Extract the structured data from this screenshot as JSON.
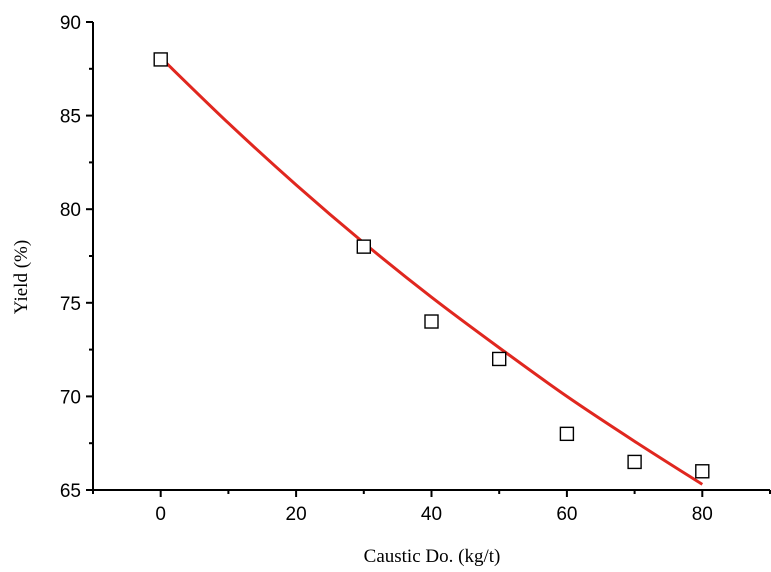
{
  "chart_data": {
    "type": "scatter",
    "title": "",
    "xlabel": "Caustic Do. (kg/t)",
    "ylabel": "Yield (%)",
    "xlim": [
      -10,
      90
    ],
    "ylim": [
      65,
      90
    ],
    "xticks": [
      0,
      20,
      40,
      60,
      80
    ],
    "yticks": [
      65,
      70,
      75,
      80,
      85,
      90
    ],
    "grid": false,
    "legend": "none",
    "series": [
      {
        "kind": "points",
        "marker": "open-square",
        "color": "#000000",
        "x": [
          0,
          30,
          40,
          50,
          60,
          70,
          80
        ],
        "y": [
          88,
          78,
          74,
          72,
          68,
          66.5,
          66
        ]
      },
      {
        "kind": "fit-line",
        "color": "#e0271f",
        "x": [
          0,
          10,
          20,
          30,
          40,
          50,
          60,
          70,
          80
        ],
        "y": [
          88.1,
          84.6,
          81.3,
          78.2,
          75.3,
          72.6,
          70.0,
          67.6,
          65.3
        ]
      }
    ]
  }
}
